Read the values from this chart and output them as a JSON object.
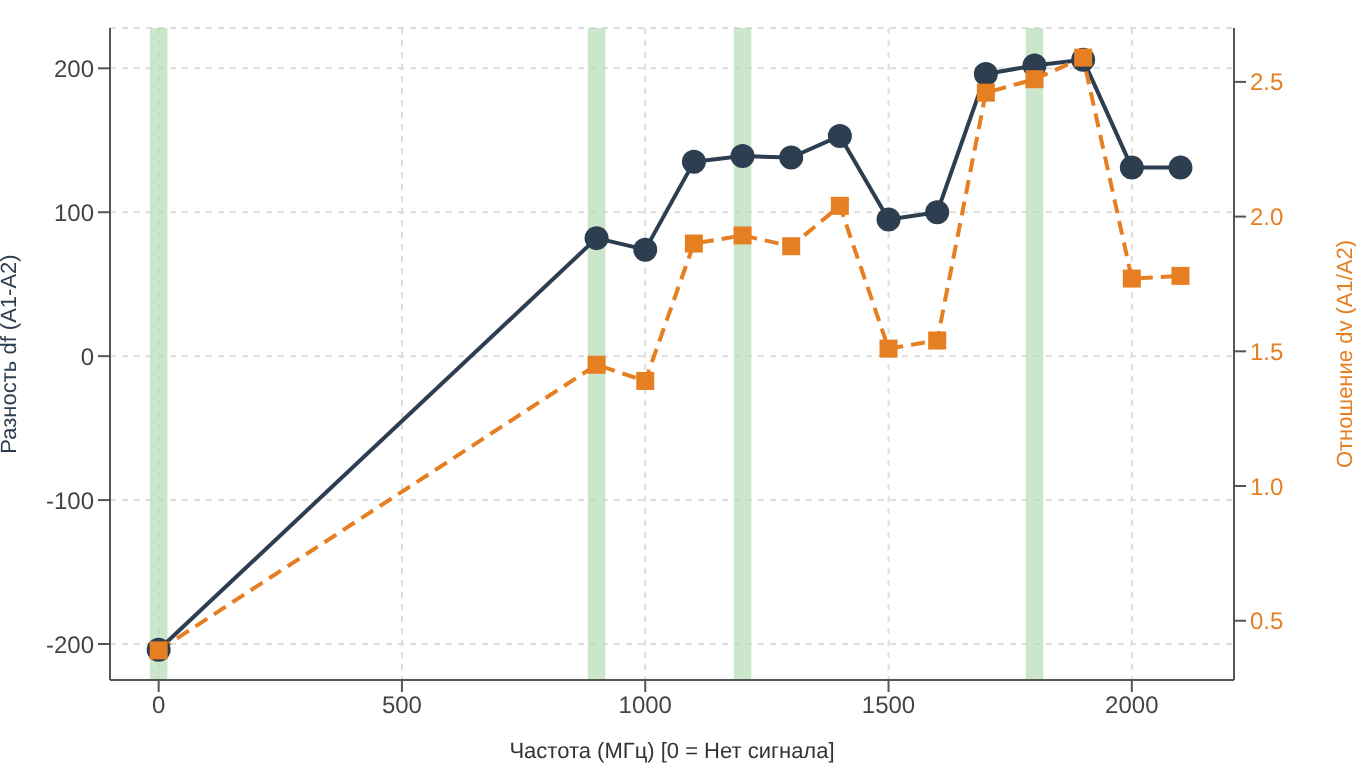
{
  "chart_data": {
    "type": "line",
    "xlabel": "Частота (МГц) [0 = Нет сигнала]",
    "ylabel": "Разность df (A1-A2)",
    "y2label": "Отношение dv (A1/A2)",
    "x": [
      0,
      900,
      1000,
      1100,
      1200,
      1300,
      1400,
      1500,
      1600,
      1700,
      1800,
      1900,
      2000,
      2100
    ],
    "series": [
      {
        "color": "#2c3e50",
        "marker": "circle",
        "line_style": "solid",
        "values": [
          -204,
          82,
          74,
          135,
          139,
          138,
          153,
          95,
          100,
          196,
          202,
          206,
          131,
          131
        ]
      },
      {
        "color": "#e67e22",
        "marker": "square",
        "line_style": "dashed",
        "axis": "y2",
        "values": [
          0.39,
          1.45,
          1.39,
          1.9,
          1.93,
          1.89,
          2.04,
          1.51,
          1.54,
          2.46,
          2.51,
          2.59,
          1.77,
          1.78
        ]
      }
    ],
    "xlim": [
      -100,
      2210
    ],
    "xticks": [
      0,
      500,
      1000,
      1500,
      2000
    ],
    "ylim": [
      -225,
      228
    ],
    "yticks": [
      -200,
      -100,
      0,
      100,
      200
    ],
    "y2lim": [
      0.28,
      2.7
    ],
    "y2ticks": [
      0.5,
      {
        "value": 1,
        "label": "1.0"
      },
      1.5,
      {
        "value": 2,
        "label": "2.0"
      },
      2.5
    ],
    "bands": [
      {
        "axis": "x",
        "from": -18,
        "to": 18,
        "color": "#b5dcb5"
      },
      {
        "axis": "x",
        "from": 882,
        "to": 918,
        "color": "#b5dcb5"
      },
      {
        "axis": "x",
        "from": 1182,
        "to": 1218,
        "color": "#b5dcb5"
      },
      {
        "axis": "x",
        "from": 1782,
        "to": 1818,
        "color": "#b5dcb5"
      }
    ],
    "grid": true,
    "legend": false
  }
}
